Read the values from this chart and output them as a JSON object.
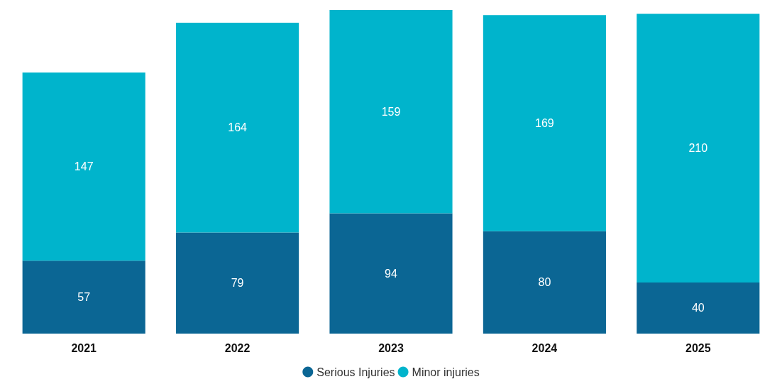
{
  "chart_data": {
    "type": "bar",
    "stacked": true,
    "categories": [
      "2021",
      "2022",
      "2023",
      "2024",
      "2025"
    ],
    "series": [
      {
        "name": "Serious Injuries",
        "color": "#0b6694",
        "values": [
          57,
          79,
          94,
          80,
          40
        ]
      },
      {
        "name": "Minor injuries",
        "color": "#00b4cc",
        "values": [
          147,
          164,
          159,
          169,
          210
        ]
      }
    ],
    "data_labels": true,
    "legend": "bottom"
  }
}
